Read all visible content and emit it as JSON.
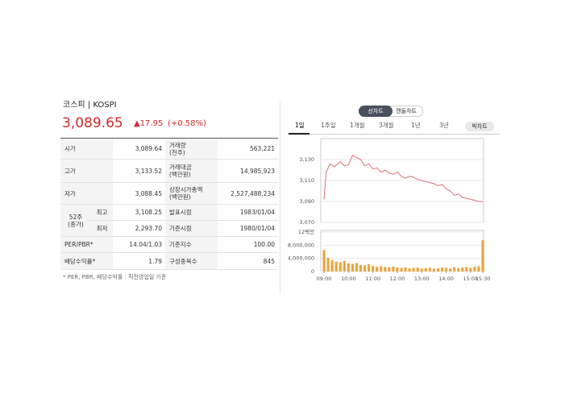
{
  "header": {
    "title": "코스피 | KOSPI",
    "price": "3,089.65",
    "change": "▲17.95",
    "change_rate": "(+0.58%)"
  },
  "table": {
    "group_label": "52주\n(종가)",
    "rows": [
      {
        "label": "시가",
        "value": "3,089.64",
        "label2": "거래량\n(천주)",
        "value2": "563,221"
      },
      {
        "label": "고가",
        "value": "3,133.52",
        "label2": "거래대금\n(백만원)",
        "value2": "14,985,923"
      },
      {
        "label": "저가",
        "value": "3,088.45",
        "label2": "상장시가총액\n(백만원)",
        "value2": "2,527,488,234"
      },
      {
        "label": "최고",
        "value": "3,108.25",
        "label2": "발표시점",
        "value2": "1983/01/04"
      },
      {
        "label": "최저",
        "value": "2,293.70",
        "label2": "기준시점",
        "value2": "1980/01/04"
      },
      {
        "label": "PER/PBR*",
        "value": "14.04/1.03",
        "label2": "기준지수",
        "value2": "100.00"
      },
      {
        "label": "배당수익률*",
        "value": "1.79",
        "label2": "구성종목수",
        "value2": "845"
      }
    ]
  },
  "footnote": "* PER, PBR, 배당수익률 : 직전영업일 기준",
  "chart_toggle": [
    "선차트",
    "캔들차트"
  ],
  "period_tabs": [
    "1일",
    "1주일",
    "1개월",
    "3개월",
    "1년",
    "3년"
  ],
  "big_chart": "빅차트",
  "chart_data": [
    {
      "type": "line",
      "color": "#e0707a",
      "x": [
        0,
        5,
        15,
        25,
        40,
        50,
        60,
        70,
        80,
        90,
        100,
        110,
        120,
        130,
        140,
        150,
        160,
        170,
        180,
        190,
        200,
        210,
        220,
        230,
        240,
        250,
        260,
        270,
        280,
        290,
        300,
        310,
        320,
        330,
        340,
        350,
        360,
        370,
        380,
        390
      ],
      "values": [
        3092,
        3118,
        3126,
        3123,
        3128,
        3124,
        3125,
        3134,
        3132,
        3130,
        3124,
        3126,
        3121,
        3122,
        3118,
        3120,
        3117,
        3116,
        3118,
        3114,
        3112,
        3114,
        3113,
        3111,
        3110,
        3109,
        3108,
        3107,
        3105,
        3106,
        3102,
        3100,
        3096,
        3097,
        3094,
        3093,
        3092,
        3091,
        3090,
        3089.65
      ],
      "xlim": [
        -8,
        392
      ],
      "ylim": [
        3070,
        3150
      ],
      "yticks": [
        {
          "value": 3070,
          "label": "3,070"
        },
        {
          "value": 3090,
          "label": "3,090"
        },
        {
          "value": 3110,
          "label": "3,110"
        },
        {
          "value": 3130,
          "label": "3,130"
        }
      ],
      "grid": true
    },
    {
      "type": "bar",
      "color": "#e8a640",
      "x": [
        0,
        10,
        20,
        30,
        40,
        50,
        60,
        70,
        80,
        90,
        100,
        110,
        120,
        130,
        140,
        150,
        160,
        170,
        180,
        190,
        200,
        210,
        220,
        230,
        240,
        250,
        260,
        270,
        280,
        290,
        300,
        310,
        320,
        330,
        340,
        350,
        360,
        370,
        380,
        390
      ],
      "values": [
        6500000,
        4200000,
        3500000,
        3000000,
        2800000,
        3200000,
        2500000,
        2300000,
        2600000,
        2000000,
        1900000,
        2200000,
        1700000,
        1500000,
        1600000,
        1400000,
        1300000,
        1500000,
        1200000,
        1100000,
        1300000,
        1000000,
        1100000,
        1200000,
        900000,
        1000000,
        1100000,
        900000,
        1000000,
        1200000,
        1100000,
        900000,
        1300000,
        1000000,
        1200000,
        1400000,
        1100000,
        1500000,
        1600000,
        9500000
      ],
      "xlim": [
        -8,
        392
      ],
      "ylim": [
        0,
        12500000
      ],
      "xticks": [
        {
          "value": 0,
          "label": "09:00"
        },
        {
          "value": 60,
          "label": "10:00"
        },
        {
          "value": 120,
          "label": "11:00"
        },
        {
          "value": 180,
          "label": "12:00"
        },
        {
          "value": 240,
          "label": "13:00"
        },
        {
          "value": 300,
          "label": "14:00"
        },
        {
          "value": 360,
          "label": "15:00"
        },
        {
          "value": 390,
          "label": "15:30"
        }
      ],
      "yticks": [
        0,
        {
          "value": 4000000,
          "label": "4,000,000"
        },
        {
          "value": 8000000,
          "label": "8,000,000"
        },
        {
          "value": 12000000,
          "label": "12백만"
        }
      ],
      "grid": true
    }
  ]
}
